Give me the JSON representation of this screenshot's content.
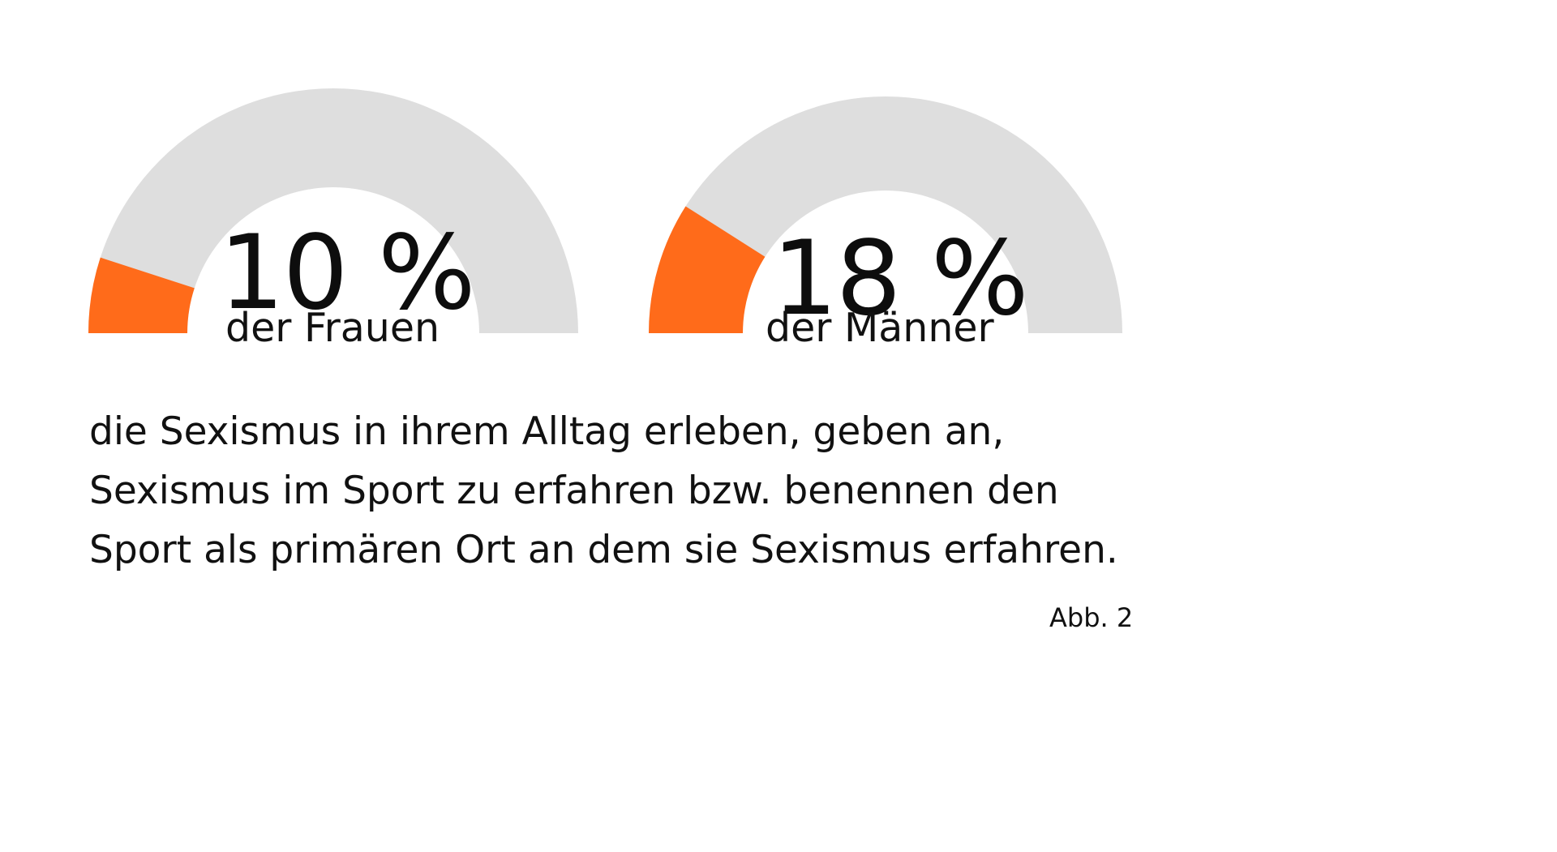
{
  "colors": {
    "highlight": "#FF6B1A",
    "track": "#DEDEDE",
    "text": "#111111"
  },
  "chart_data": {
    "type": "gauge",
    "max": 100,
    "gauges": [
      {
        "value": 10,
        "value_label": "10 %",
        "caption": "der Frauen"
      },
      {
        "value": 18,
        "value_label": "18 %",
        "caption": "der Männer"
      }
    ]
  },
  "description": {
    "lines": [
      "die Sexismus in ihrem Alltag erleben, geben an,",
      "Sexismus im Sport zu erfahren bzw. benennen den",
      "Sport als primären Ort an dem sie Sexismus erfahren."
    ]
  },
  "figure_label": "Abb. 2"
}
